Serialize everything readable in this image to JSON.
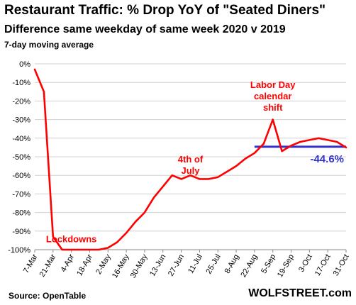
{
  "title": "Restaurant Traffic: % Drop YoY of \"Seated Diners\"",
  "subtitle": "Difference same weekday of same week 2020 v 2019",
  "subtitle2": "7-day moving average",
  "source": "Source: OpenTable",
  "brand": "WOLFSTREET.com",
  "colors": {
    "line": "#ff0000",
    "reference": "#3333cc",
    "annotation": "#ff0000",
    "grid": "#d0d0d0"
  },
  "chart_data": {
    "type": "line",
    "x": [
      "7-Mar",
      "14-Mar",
      "21-Mar",
      "28-Mar",
      "4-Apr",
      "11-Apr",
      "18-Apr",
      "25-Apr",
      "2-May",
      "9-May",
      "16-May",
      "23-May",
      "30-May",
      "6-Jun",
      "13-Jun",
      "20-Jun",
      "27-Jun",
      "4-Jul",
      "11-Jul",
      "18-Jul",
      "25-Jul",
      "1-Aug",
      "8-Aug",
      "15-Aug",
      "22-Aug",
      "29-Aug",
      "5-Sep",
      "12-Sep",
      "19-Sep",
      "26-Sep",
      "3-Oct",
      "10-Oct",
      "17-Oct",
      "24-Oct",
      "31-Oct"
    ],
    "tick_labels": [
      "7-Mar",
      "21-Mar",
      "4-Apr",
      "18-Apr",
      "2-May",
      "16-May",
      "30-May",
      "13-Jun",
      "27-Jun",
      "11-Jul",
      "25-Jul",
      "8-Aug",
      "22-Aug",
      "5-Sep",
      "19-Sep",
      "3-Oct",
      "17-Oct",
      "31-Oct"
    ],
    "y": [
      -3,
      -15,
      -93,
      -100,
      -100,
      -100,
      -100,
      -100,
      -99,
      -96,
      -91,
      -85,
      -80,
      -72,
      -66,
      -60,
      -62,
      -60,
      -62,
      -62,
      -61,
      -58,
      -55,
      -51,
      -48,
      -43,
      -30,
      -47,
      -44,
      -42,
      -41,
      -40,
      -41,
      -42,
      -45
    ],
    "ylim": [
      -100,
      0
    ],
    "yticks": [
      "0%",
      "-10%",
      "-20%",
      "-30%",
      "-40%",
      "-50%",
      "-60%",
      "-70%",
      "-80%",
      "-90%",
      "-100%"
    ],
    "grid": true,
    "reference_line": {
      "value": -44.6,
      "label": "-44.6%",
      "from": "22-Aug",
      "to": "31-Oct"
    },
    "annotations": [
      {
        "text": [
          "Lockdowns"
        ],
        "at": "4-Apr",
        "y": -96
      },
      {
        "text": [
          "4th of",
          "July"
        ],
        "at": "4-Jul",
        "y": -53
      },
      {
        "text": [
          "Labor Day",
          "calendar",
          "shift"
        ],
        "at": "5-Sep",
        "y": -13
      }
    ]
  }
}
